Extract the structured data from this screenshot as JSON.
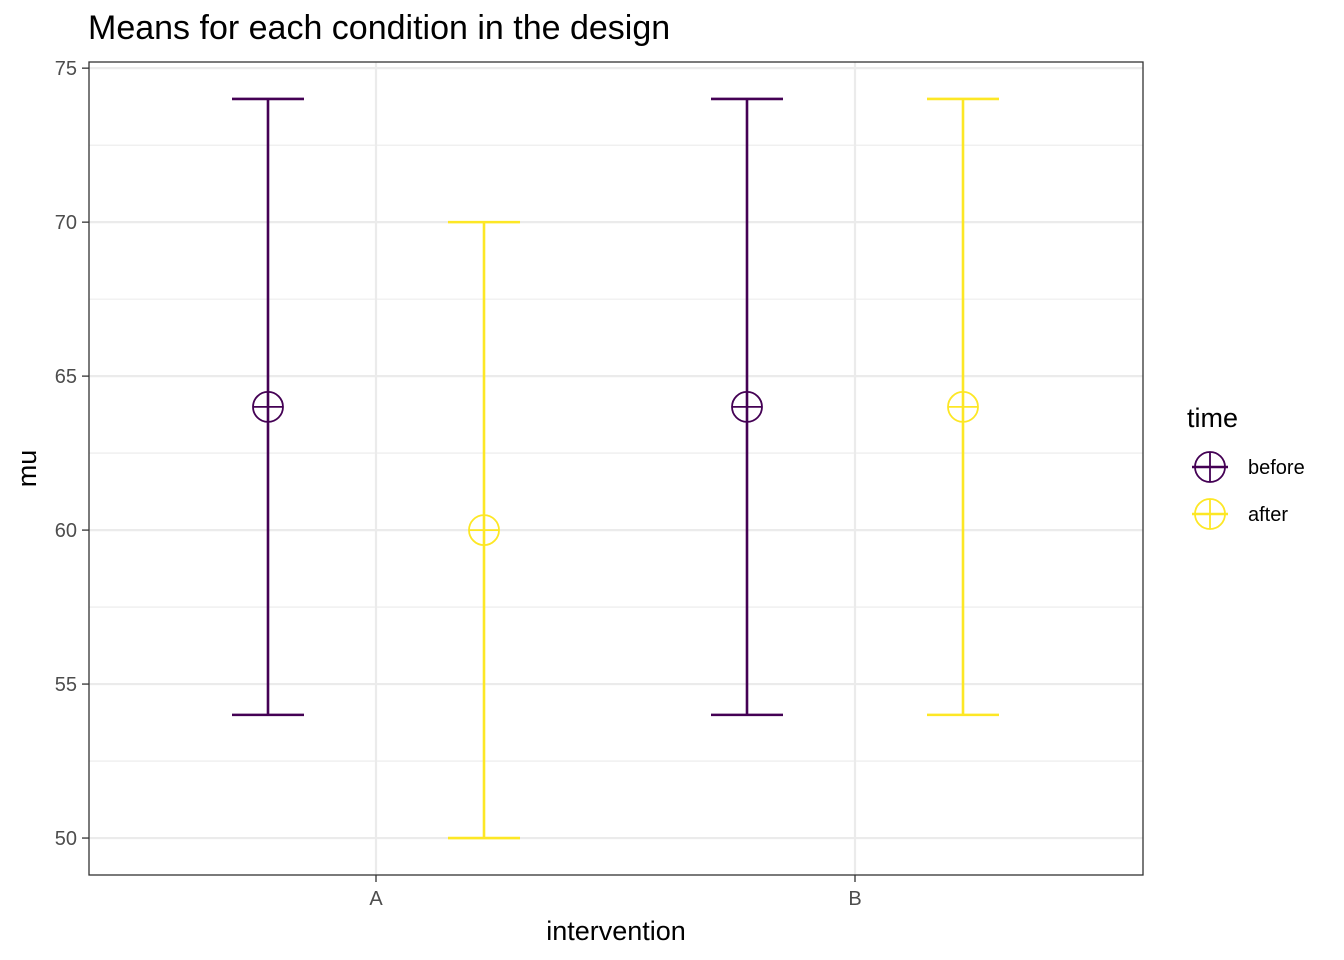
{
  "chart_data": {
    "type": "errorbar",
    "title": "Means for each condition in the design",
    "xlabel": "intervention",
    "ylabel": "mu",
    "categories": [
      "A",
      "B"
    ],
    "ylim": [
      48.8,
      75.2
    ],
    "yticks": [
      50,
      55,
      60,
      65,
      70,
      75
    ],
    "grid": true,
    "legend": {
      "title": "time",
      "position": "right"
    },
    "series": [
      {
        "name": "before",
        "color": "#440154",
        "points": [
          {
            "x": "A",
            "y": 64,
            "ymin": 54,
            "ymax": 74
          },
          {
            "x": "B",
            "y": 64,
            "ymin": 54,
            "ymax": 74
          }
        ]
      },
      {
        "name": "after",
        "color": "#FDE725",
        "points": [
          {
            "x": "A",
            "y": 60,
            "ymin": 50,
            "ymax": 70
          },
          {
            "x": "B",
            "y": 64,
            "ymin": 54,
            "ymax": 74
          }
        ]
      }
    ]
  }
}
